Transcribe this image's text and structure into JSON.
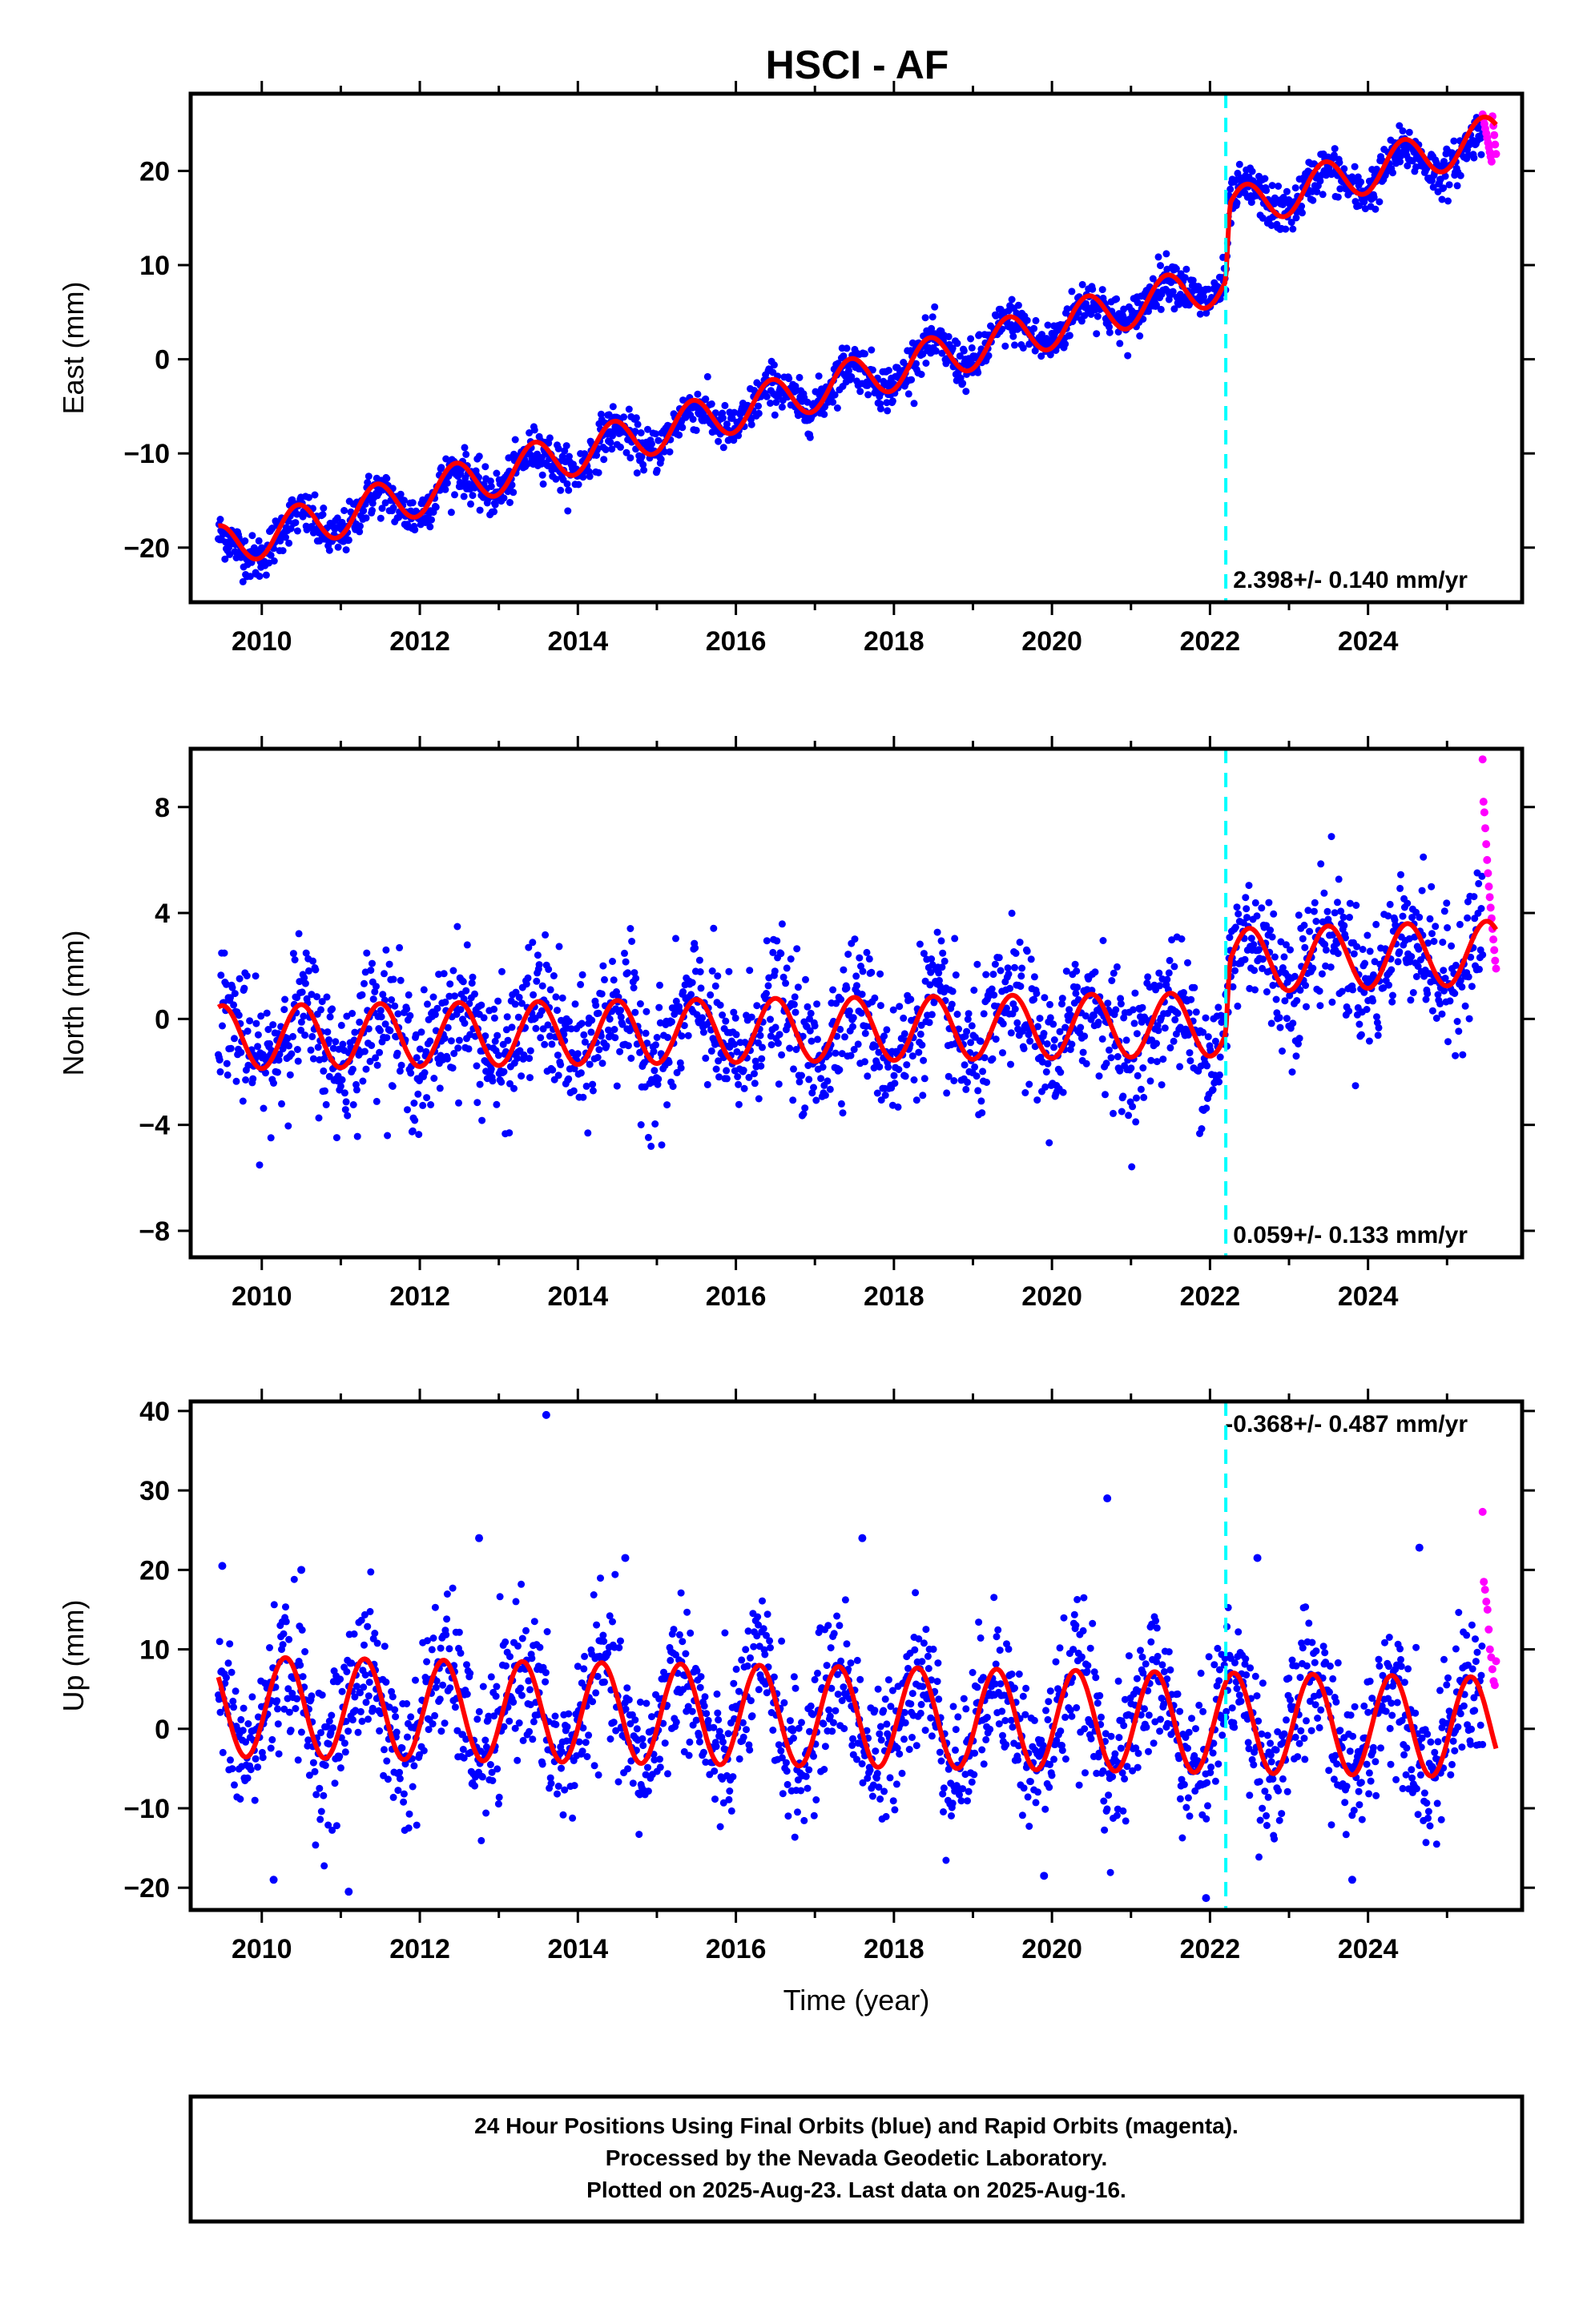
{
  "chart_data": [
    {
      "type": "scatter",
      "title": "HSCI - AF",
      "ylabel": "East (mm)",
      "xlabel": "",
      "xlim": [
        2009.1,
        2025.95
      ],
      "ylim": [
        -25.8,
        28.2
      ],
      "xticks": [
        2010,
        2012,
        2014,
        2016,
        2018,
        2020,
        2022,
        2024
      ],
      "xtick_labels": [
        "2010",
        "2012",
        "2014",
        "2016",
        "2018",
        "2020",
        "2022",
        "2024"
      ],
      "yticks": [
        -20,
        -10,
        0,
        10,
        20
      ],
      "ytick_labels": [
        "−20",
        "−10",
        "0",
        "10",
        "20"
      ],
      "rate_label": "2.398+/- 0.140 mm/yr",
      "rate_position": "bottom-right",
      "series": [
        {
          "kind": "scatter",
          "color": "#0000ff",
          "x_range": [
            2009.45,
            2025.45
          ],
          "trend": {
            "x": [
              2009.45,
              2022.2,
              2022.25,
              2025.45
            ],
            "y": [
              -20.5,
              8.5,
              16.0,
              22.5
            ]
          },
          "seasonal_amplitude": 1.8,
          "scatter_sd": 1.2
        },
        {
          "kind": "scatter",
          "color": "#ff00ff",
          "x_range": [
            2025.45,
            2025.62
          ],
          "y_values": [
            26.0,
            25.5,
            25.0,
            24.5,
            24.0,
            23.5,
            23.0,
            22.5,
            22.0,
            21.5,
            21.0,
            25.8,
            24.8,
            23.8,
            22.8,
            21.8
          ]
        },
        {
          "kind": "model",
          "color": "#ff0000",
          "trend": {
            "x": [
              2009.45,
              2022.2,
              2022.25,
              2025.62
            ],
            "y": [
              -20.0,
              8.3,
              15.8,
              23.8
            ]
          },
          "seasonal_amplitude": 2.3,
          "phase": 0.2
        }
      ],
      "offsets": [
        {
          "x": 2022.2,
          "color": "#00ffff",
          "style": "dashed"
        }
      ],
      "grid": false
    },
    {
      "type": "scatter",
      "title": "",
      "ylabel": "North (mm)",
      "xlabel": "",
      "xlim": [
        2009.1,
        2025.95
      ],
      "ylim": [
        -9.0,
        10.2
      ],
      "xticks": [
        2010,
        2012,
        2014,
        2016,
        2018,
        2020,
        2022,
        2024
      ],
      "xtick_labels": [
        "2010",
        "2012",
        "2014",
        "2016",
        "2018",
        "2020",
        "2022",
        "2024"
      ],
      "yticks": [
        -8,
        -4,
        0,
        4,
        8
      ],
      "ytick_labels": [
        "−8",
        "−4",
        "0",
        "4",
        "8"
      ],
      "rate_label": "0.059+/- 0.133 mm/yr",
      "rate_position": "bottom-right",
      "series": [
        {
          "kind": "scatter",
          "color": "#0000ff",
          "x_range": [
            2009.45,
            2025.45
          ],
          "trend": {
            "x": [
              2009.45,
              2022.2,
              2022.25,
              2025.45
            ],
            "y": [
              -0.7,
              -0.3,
              2.2,
              2.4
            ]
          },
          "seasonal_amplitude": 1.1,
          "scatter_sd": 1.25
        },
        {
          "kind": "scatter",
          "color": "#ff00ff",
          "x_range": [
            2025.45,
            2025.62
          ],
          "y_values": [
            9.8,
            8.2,
            7.8,
            7.2,
            6.6,
            6.0,
            5.5,
            5.0,
            4.6,
            4.2,
            3.8,
            3.4,
            3.0,
            2.6,
            2.2,
            1.9
          ]
        },
        {
          "kind": "model",
          "color": "#ff0000",
          "trend": {
            "x": [
              2009.45,
              2022.2,
              2022.25,
              2025.62
            ],
            "y": [
              -0.7,
              -0.2,
              2.2,
              2.5
            ]
          },
          "seasonal_amplitude": 1.2,
          "phase": 0.25
        }
      ],
      "offsets": [
        {
          "x": 2022.2,
          "color": "#00ffff",
          "style": "dashed"
        }
      ],
      "grid": false
    },
    {
      "type": "scatter",
      "title": "",
      "ylabel": "Up (mm)",
      "xlabel": "Time (year)",
      "xlim": [
        2009.1,
        2025.95
      ],
      "ylim": [
        -22.8,
        41.2
      ],
      "xticks": [
        2010,
        2012,
        2014,
        2016,
        2018,
        2020,
        2022,
        2024
      ],
      "xtick_labels": [
        "2010",
        "2012",
        "2014",
        "2016",
        "2018",
        "2020",
        "2022",
        "2024"
      ],
      "yticks": [
        -20,
        -10,
        0,
        10,
        20,
        30,
        40
      ],
      "ytick_labels": [
        "−20",
        "−10",
        "0",
        "10",
        "20",
        "30",
        "40"
      ],
      "rate_label": "-0.368+/- 0.487 mm/yr",
      "rate_position": "top-right",
      "series": [
        {
          "kind": "scatter",
          "color": "#0000ff",
          "x_range": [
            2009.45,
            2025.45
          ],
          "trend": {
            "x": [
              2009.45,
              2025.45
            ],
            "y": [
              2.5,
              0.0
            ]
          },
          "seasonal_amplitude": 6.0,
          "scatter_sd": 4.5
        },
        {
          "kind": "scatter",
          "color": "#ff00ff",
          "x_range": [
            2025.45,
            2025.62
          ],
          "y_values": [
            27.3,
            18.5,
            17.5,
            16.0,
            15.0,
            12.5,
            10.0,
            9.0,
            7.5,
            6.0,
            5.5,
            8.5
          ]
        },
        {
          "kind": "model",
          "color": "#ff0000",
          "trend": {
            "x": [
              2009.45,
              2025.62
            ],
            "y": [
              2.8,
              0.2
            ]
          },
          "seasonal_amplitude": 6.3,
          "phase": 0.05
        }
      ],
      "outliers": {
        "color": "#0000ff",
        "points": [
          [
            2013.6,
            39.5
          ],
          [
            2012.75,
            24.0
          ],
          [
            2020.7,
            29.0
          ],
          [
            2017.6,
            24.0
          ],
          [
            2014.6,
            21.5
          ],
          [
            2009.5,
            20.5
          ],
          [
            2010.5,
            20.0
          ],
          [
            2022.6,
            21.5
          ],
          [
            2024.65,
            22.8
          ],
          [
            2011.1,
            -20.5
          ],
          [
            2010.15,
            -19.0
          ],
          [
            2021.95,
            -21.3
          ],
          [
            2019.9,
            -18.5
          ],
          [
            2023.8,
            -19.0
          ]
        ]
      },
      "offsets": [
        {
          "x": 2022.2,
          "color": "#00ffff",
          "style": "dashed"
        }
      ],
      "grid": false
    }
  ],
  "caption": {
    "line1": "24 Hour Positions Using Final Orbits (blue) and Rapid Orbits (magenta).",
    "line2": "Processed by the Nevada Geodetic Laboratory.",
    "line3": "Plotted on 2025-Aug-23. Last data on 2025-Aug-16."
  }
}
